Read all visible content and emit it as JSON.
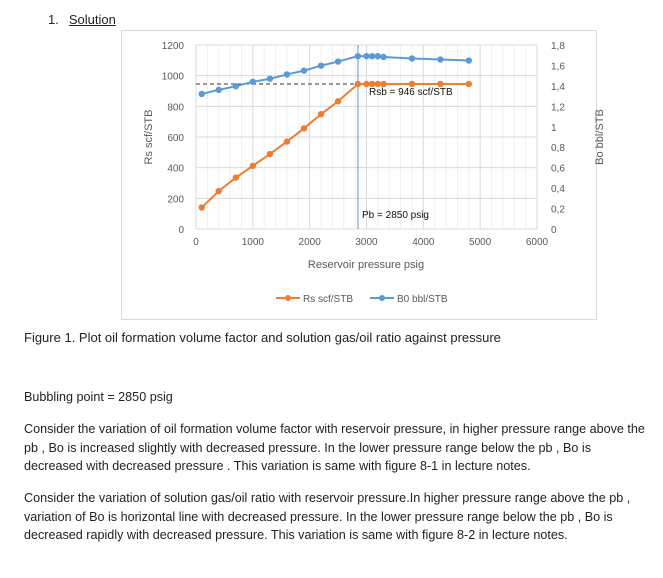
{
  "heading": {
    "number": "1.",
    "title": "Solution"
  },
  "chart_data": {
    "type": "line",
    "xlabel": "Reservoir pressure  psig",
    "ylabel": "Rs scf/STB",
    "y2label": "Bo  bbl/STB",
    "xlim": [
      0,
      6000
    ],
    "ylim": [
      0,
      1200
    ],
    "y2lim": [
      0,
      1.8
    ],
    "xticks": [
      0,
      1000,
      2000,
      3000,
      4000,
      5000,
      6000
    ],
    "yticks": [
      0,
      200,
      400,
      600,
      800,
      1000,
      1200
    ],
    "y2ticks": [
      "0",
      "0,2",
      "0,4",
      "0,6",
      "0,8",
      "1",
      "1,2",
      "1,4",
      "1,6",
      "1,8"
    ],
    "grid": true,
    "legend": "bottom",
    "series": [
      {
        "name": "Rs scf/STB",
        "axis": "left",
        "color": "#ED7D31",
        "x": [
          100,
          400,
          700,
          1000,
          1300,
          1600,
          1900,
          2200,
          2500,
          2850,
          3000,
          3100,
          3200,
          3300,
          3800,
          4300,
          4800
        ],
        "y": [
          140,
          247,
          335,
          412,
          489,
          570,
          656,
          749,
          833,
          946,
          946,
          946,
          946,
          946,
          946,
          946,
          946
        ]
      },
      {
        "name": "B0  bbl/STB",
        "axis": "right",
        "color": "#5B9BD5",
        "x": [
          100,
          400,
          700,
          1000,
          1300,
          1600,
          1900,
          2200,
          2500,
          2850,
          3000,
          3100,
          3200,
          3300,
          3800,
          4300,
          4800
        ],
        "y": [
          1.321,
          1.361,
          1.397,
          1.44,
          1.47,
          1.512,
          1.549,
          1.598,
          1.638,
          1.691,
          1.691,
          1.69,
          1.69,
          1.683,
          1.668,
          1.658,
          1.648
        ]
      }
    ],
    "annotations": {
      "rsb_label": "Rsb =  946 scf/STB",
      "rsb_value": 946,
      "pb_label": "Pb = 2850 psig",
      "pb_value": 2850
    }
  },
  "caption": "Figure 1. Plot oil formation volume factor and solution gas/oil ratio against pressure",
  "bubble_point": "Bubbling point = 2850 psig",
  "paragraphs": [
    "Consider the variation of oil formation volume factor with reservoir pressure, in higher pressure range above the pb , Bo is  increased slightly with decreased pressure. In the lower pressure range below the pb , Bo is  decreased with decreased pressure . This variation is same with figure 8-1 in lecture notes.",
    "Consider the variation of solution gas/oil ratio with reservoir pressure.In higher pressure range above the pb , variation of Bo is  horizontal line with decreased pressure. In the lower pressure range below the pb , Bo is decreased rapidly with decreased pressure. This variation is same with figure 8-2 in lecture notes."
  ]
}
